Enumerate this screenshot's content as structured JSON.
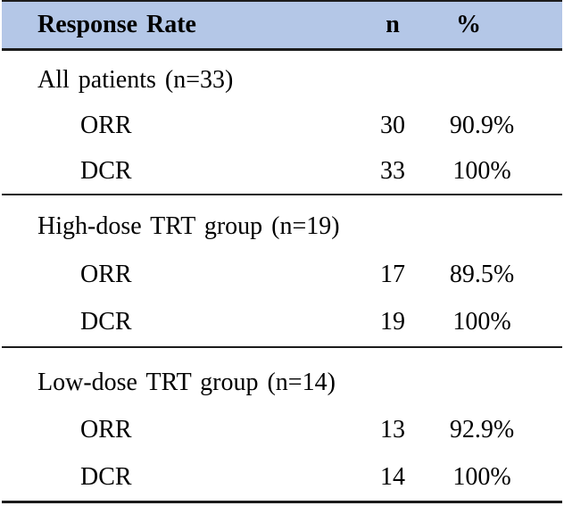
{
  "table": {
    "header": {
      "label": "Response Rate",
      "n": "n",
      "pct": "%"
    },
    "sections": [
      {
        "group": "All patients (n=33)",
        "rows": [
          {
            "label": "ORR",
            "n": "30",
            "pct": "90.9%"
          },
          {
            "label": "DCR",
            "n": "33",
            "pct": "100%"
          }
        ]
      },
      {
        "group": "High-dose TRT group (n=19)",
        "rows": [
          {
            "label": "ORR",
            "n": "17",
            "pct": "89.5%"
          },
          {
            "label": "DCR",
            "n": "19",
            "pct": "100%"
          }
        ]
      },
      {
        "group": "Low-dose TRT group (n=14)",
        "rows": [
          {
            "label": "ORR",
            "n": "13",
            "pct": "92.9%"
          },
          {
            "label": "DCR",
            "n": "14",
            "pct": "100%"
          }
        ]
      }
    ],
    "colors": {
      "header_bg": "#b4c7e7",
      "border": "#1c1c1c",
      "text": "#000000"
    }
  }
}
